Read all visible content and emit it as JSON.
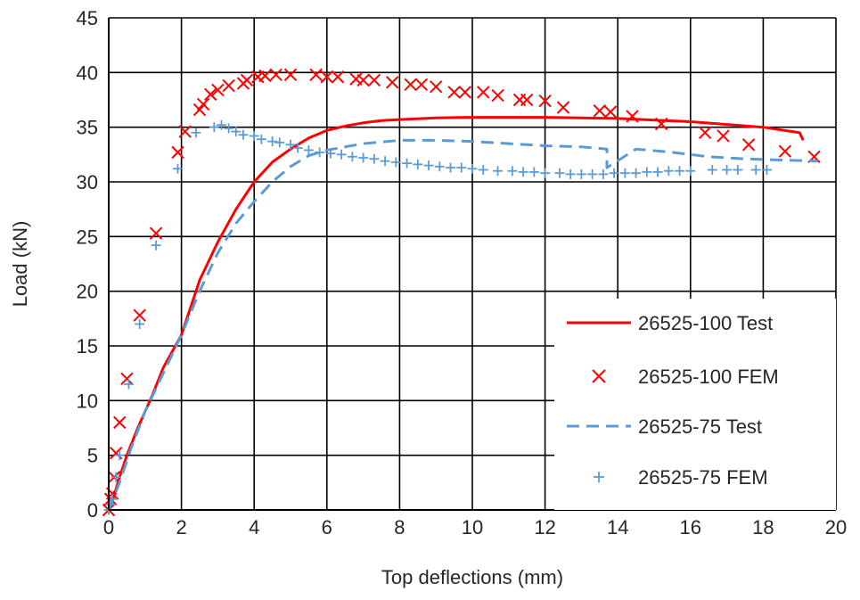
{
  "chart_data": {
    "type": "scatter",
    "title": "",
    "xlabel": "Top deflections (mm)",
    "ylabel": "Load (kN)",
    "xlim": [
      0,
      20
    ],
    "ylim": [
      0,
      45
    ],
    "xticks": [
      "0",
      "2",
      "4",
      "6",
      "8",
      "10",
      "12",
      "14",
      "16",
      "18",
      "20"
    ],
    "yticks": [
      "0",
      "5",
      "10",
      "15",
      "20",
      "25",
      "30",
      "35",
      "40",
      "45"
    ],
    "grid": true,
    "legend_position": "bottom-right",
    "series": [
      {
        "name": "26525-100 Test",
        "style": "solid-line",
        "color": "#ff0000",
        "x": [
          0,
          0.1,
          0.3,
          0.5,
          0.8,
          1.0,
          1.2,
          1.5,
          1.8,
          2.0,
          2.5,
          3.0,
          3.5,
          4.0,
          4.5,
          5.0,
          5.5,
          6.0,
          6.5,
          7.0,
          7.5,
          8.0,
          9.0,
          10.0,
          12.0,
          14.0,
          16.0,
          18.0,
          19.0,
          19.1
        ],
        "y": [
          0,
          0.8,
          3,
          5,
          7.5,
          9,
          10.5,
          13,
          14.8,
          16,
          21,
          24.5,
          27.5,
          30,
          31.8,
          33,
          34,
          34.7,
          35.1,
          35.4,
          35.6,
          35.7,
          35.85,
          35.9,
          35.9,
          35.8,
          35.5,
          35,
          34.5,
          33.8
        ]
      },
      {
        "name": "26525-100 FEM",
        "style": "x-marker",
        "color": "#ff0000",
        "x": [
          0,
          0.05,
          0.1,
          0.15,
          0.2,
          0.3,
          0.5,
          0.85,
          1.3,
          1.9,
          2.1,
          2.5,
          2.6,
          2.8,
          3.0,
          3.3,
          3.7,
          3.8,
          4.1,
          4.3,
          4.6,
          5.0,
          5.7,
          6.0,
          6.3,
          6.8,
          7.0,
          7.3,
          7.8,
          8.3,
          8.6,
          9.0,
          9.5,
          9.8,
          10.3,
          10.7,
          11.3,
          11.5,
          12.0,
          12.5,
          13.5,
          13.8,
          14.4,
          15.2,
          16.4,
          16.9,
          17.6,
          18.6,
          19.4
        ],
        "y": [
          0,
          1,
          1.5,
          3,
          5.2,
          8,
          12,
          17.8,
          25.3,
          32.7,
          34.6,
          36.6,
          37.1,
          38,
          38.4,
          38.8,
          39,
          39.3,
          39.6,
          39.7,
          39.8,
          39.8,
          39.8,
          39.6,
          39.6,
          39.4,
          39.3,
          39.3,
          39.1,
          38.9,
          38.9,
          38.7,
          38.2,
          38.2,
          38.2,
          37.9,
          37.5,
          37.5,
          37.4,
          36.8,
          36.5,
          36.4,
          36,
          35.3,
          34.5,
          34.2,
          33.4,
          32.8,
          32.3
        ]
      },
      {
        "name": "26525-75 Test",
        "style": "dashed-line",
        "color": "#5b9bd5",
        "x": [
          0,
          0.3,
          0.6,
          1.0,
          1.5,
          2.0,
          2.5,
          3.0,
          3.5,
          4.0,
          4.5,
          5.0,
          5.5,
          6.0,
          7.0,
          8.0,
          9.0,
          10.0,
          11.0,
          12.0,
          13.0,
          13.7,
          13.7,
          14.5,
          15.5,
          16.5,
          17.5,
          18.5,
          19.5
        ],
        "y": [
          0,
          2.5,
          5.5,
          9,
          12.5,
          16,
          20,
          23.5,
          26.2,
          28.2,
          30,
          31.4,
          32.4,
          32.9,
          33.5,
          33.8,
          33.8,
          33.7,
          33.5,
          33.3,
          33.2,
          33,
          31.3,
          33,
          32.7,
          32.3,
          32.1,
          32,
          31.9
        ]
      },
      {
        "name": "26525-75 FEM",
        "style": "plus-marker",
        "color": "#5b9bd5",
        "x": [
          0,
          0.05,
          0.1,
          0.2,
          0.3,
          0.55,
          0.85,
          1.3,
          1.9,
          2.4,
          2.9,
          3.1,
          3.3,
          3.5,
          3.7,
          4.0,
          4.2,
          4.5,
          4.7,
          5.0,
          5.2,
          5.5,
          5.8,
          6.1,
          6.4,
          6.7,
          7.0,
          7.3,
          7.6,
          7.9,
          8.2,
          8.5,
          8.8,
          9.1,
          9.4,
          9.7,
          10.0,
          10.3,
          10.7,
          11.1,
          11.4,
          11.7,
          12.0,
          12.4,
          12.7,
          13.0,
          13.3,
          13.6,
          13.9,
          14.2,
          14.5,
          14.8,
          15.1,
          15.4,
          15.7,
          16.0,
          16.6,
          17.0,
          17.3,
          17.8,
          18.1
        ],
        "y": [
          0,
          0.5,
          1,
          3,
          5,
          11.5,
          17,
          24.2,
          31.2,
          34.5,
          35,
          35.2,
          34.9,
          34.6,
          34.3,
          34.2,
          33.9,
          33.7,
          33.6,
          33.4,
          33.1,
          32.9,
          32.7,
          32.6,
          32.5,
          32.3,
          32.2,
          32.1,
          31.9,
          31.8,
          31.7,
          31.6,
          31.5,
          31.4,
          31.3,
          31.3,
          31.2,
          31.1,
          31,
          31,
          30.9,
          30.9,
          30.8,
          30.8,
          30.7,
          30.7,
          30.7,
          30.7,
          30.8,
          30.8,
          30.8,
          30.9,
          30.9,
          31,
          31,
          31,
          31.1,
          31.1,
          31.1,
          31.1,
          31.1
        ]
      }
    ]
  }
}
